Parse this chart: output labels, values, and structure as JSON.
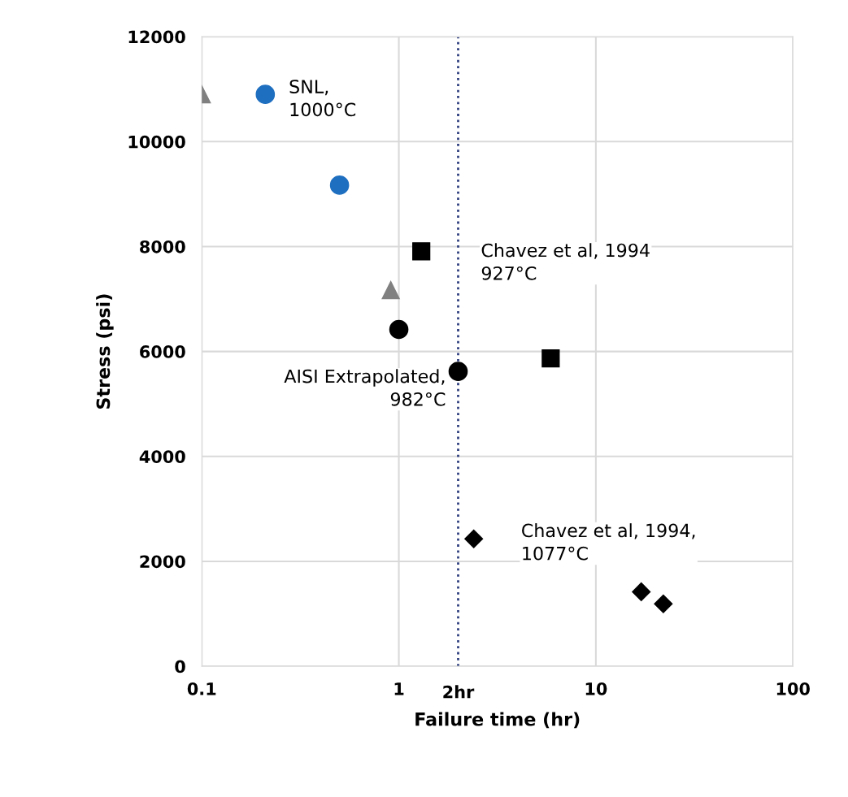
{
  "chart_data": {
    "type": "scatter",
    "xlabel": "Failure time (hr)",
    "ylabel": "Stress (psi)",
    "log": "x",
    "xlim": [
      0.1,
      100
    ],
    "xticks": [
      0.1,
      1,
      10,
      100
    ],
    "ylim": [
      0,
      12000
    ],
    "yticks": [
      0,
      2000,
      4000,
      6000,
      8000,
      10000,
      12000
    ],
    "grid": true,
    "series": [
      {
        "color": "#808080",
        "marker": "triangle",
        "x": [
          0.1,
          0.91
        ],
        "values": [
          10900,
          7170
        ]
      },
      {
        "color": "#1f6fc0",
        "marker": "circle",
        "x": [
          0.21,
          0.5
        ],
        "values": [
          10900,
          9170
        ]
      },
      {
        "color": "#000000",
        "marker": "square",
        "x": [
          1.3,
          5.9
        ],
        "values": [
          7910,
          5870
        ]
      },
      {
        "color": "#000000",
        "marker": "circle",
        "x": [
          1.0,
          2.0
        ],
        "values": [
          6420,
          5620
        ]
      },
      {
        "color": "#000000",
        "marker": "diamond",
        "x": [
          2.4,
          17,
          22
        ],
        "values": [
          2430,
          1420,
          1190
        ]
      }
    ],
    "ref_lines": [
      {
        "axis": "x",
        "value": 2,
        "label": "2hr",
        "color": "#2f3f7f",
        "line_style": "dotted"
      }
    ],
    "annotations": [
      "SNL,\n1000°C",
      "Chavez et al, 1994\n927°C",
      "AISI Extrapolated,\n982°C",
      "Chavez et al, 1994,\n1077°C"
    ]
  }
}
